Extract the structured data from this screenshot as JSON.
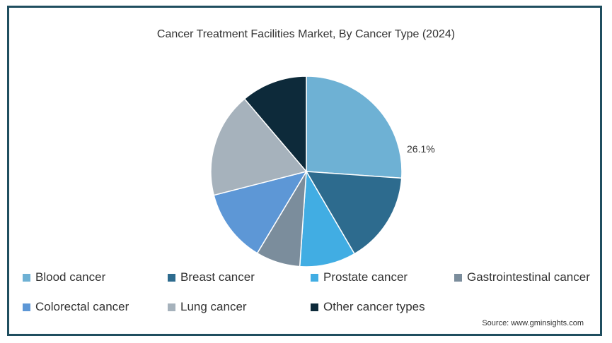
{
  "chart_data": {
    "type": "pie",
    "title": "Cancer Treatment Facilities Market, By Cancer Type (2024)",
    "categories": [
      "Blood cancer",
      "Breast cancer",
      "Prostate cancer",
      "Gastrointestinal cancer",
      "Colorectal cancer",
      "Lung cancer",
      "Other cancer types"
    ],
    "values": [
      26.1,
      15.5,
      9.5,
      7.5,
      12.4,
      17.8,
      11.2
    ],
    "colors": [
      "#6eb1d4",
      "#2d6b8e",
      "#41ade3",
      "#7b8d9c",
      "#5d97d6",
      "#a6b2bc",
      "#0d2a3a"
    ],
    "data_labels": [
      {
        "category": "Blood cancer",
        "text": "26.1%"
      }
    ],
    "legend_placement": "bottom"
  },
  "source": "Source: www.gminsights.com"
}
